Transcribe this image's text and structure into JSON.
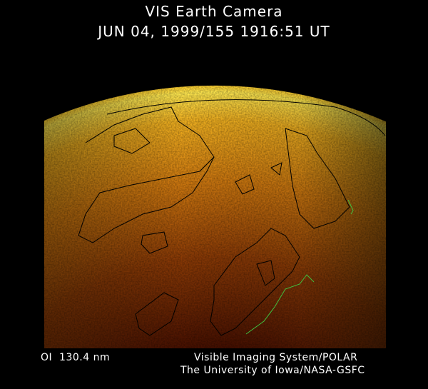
{
  "header": {
    "title": "VIS Earth Camera",
    "timestamp": "JUN 04, 1999/155 1916:51 UT"
  },
  "footer": {
    "wavelength": "OI  130.4 nm",
    "instrument": "Visible Imaging System/POLAR",
    "institution": "The University of Iowa/NASA-GSFC"
  },
  "colors": {
    "background": "#000000",
    "glow_bright": "#ffe040",
    "glow_mid": "#d07a10",
    "glow_dark": "#3a0800",
    "coastline": "#000000",
    "coastline_sunlit": "#40c040"
  }
}
